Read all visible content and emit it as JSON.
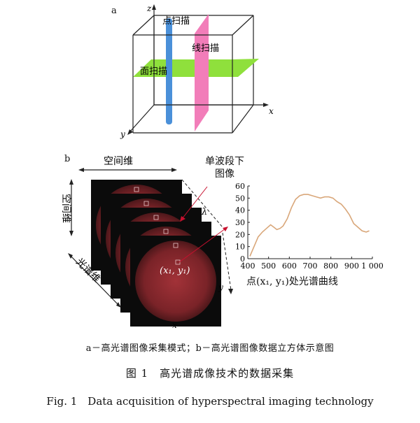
{
  "panel_a": {
    "label": "a",
    "axes": {
      "x": "x",
      "y": "y",
      "z": "z"
    },
    "point_scan": "点扫描",
    "line_scan": "线扫描",
    "area_scan": "面扫描",
    "colors": {
      "point": "#4a90d9",
      "line": "#f47ab8",
      "area": "#86e03a"
    }
  },
  "panel_b": {
    "label": "b",
    "spatial_dim_top": "空间维",
    "spatial_dim_left": "空间维",
    "spectral_dim": "光谱维",
    "single_band_image": "单波段下\n图像",
    "lambda": "λ",
    "cube_x": "x",
    "cube_y": "y",
    "point_label": "(x₁, y₁)",
    "curve_caption": "点(x₁, y₁)处光谱曲线"
  },
  "chart_data": {
    "type": "line",
    "title": "",
    "xlabel": "",
    "ylabel": "",
    "xlim": [
      400,
      1000
    ],
    "ylim": [
      0,
      60
    ],
    "xticks": [
      400,
      500,
      600,
      700,
      800,
      900,
      1000
    ],
    "xtick_labels": [
      "400",
      "500",
      "600",
      "700",
      "800",
      "900",
      "1 000"
    ],
    "yticks": [
      0,
      10,
      20,
      30,
      40,
      50,
      60
    ],
    "grid": false,
    "series": [
      {
        "color": "#d9a77a",
        "x": [
          410,
          430,
          450,
          470,
          490,
          510,
          525,
          540,
          555,
          570,
          590,
          610,
          630,
          650,
          670,
          690,
          710,
          730,
          750,
          770,
          790,
          810,
          830,
          850,
          870,
          890,
          910,
          930,
          950,
          970,
          985
        ],
        "y": [
          2,
          10,
          18,
          22,
          25,
          28,
          26,
          24,
          25,
          27,
          33,
          42,
          49,
          52,
          53,
          53,
          52,
          51,
          50,
          51,
          51,
          50,
          47,
          45,
          41,
          36,
          29,
          26,
          23,
          22,
          23
        ]
      }
    ]
  },
  "captions": {
    "sub": "a－高光谱图像采集模式；b－高光谱图像数据立方体示意图",
    "figure_cn": "图 1　高光谱成像技术的数据采集",
    "figure_en": "Fig. 1　Data acquisition of hyperspectral imaging technology"
  }
}
